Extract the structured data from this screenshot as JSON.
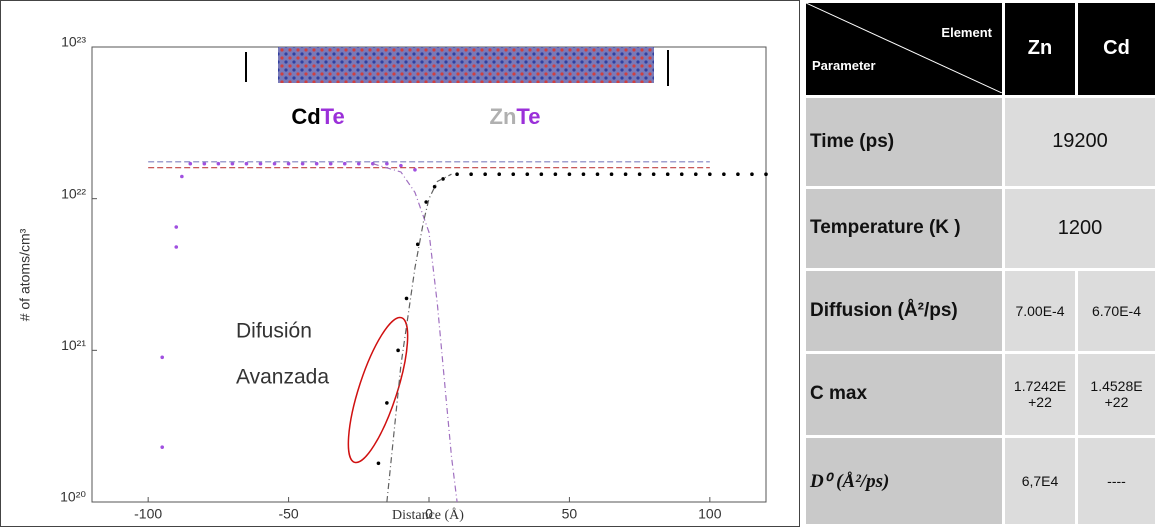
{
  "chart_data": {
    "type": "scatter",
    "y_scale": "log",
    "xlabel": "Distance (Å)",
    "ylabel": "# of atoms/cm³",
    "xlim": [
      -120,
      120
    ],
    "xticks": [
      -100,
      -50,
      0,
      50,
      100
    ],
    "ylim": [
      1e+20,
      1e+23
    ],
    "yticks": [
      {
        "value": 1e+20,
        "label": "10²⁰"
      },
      {
        "value": 1e+21,
        "label": "10²¹"
      },
      {
        "value": 1e+22,
        "label": "10²²"
      },
      {
        "value": 1e+23,
        "label": "10²³"
      }
    ],
    "material_labels": [
      {
        "parts": [
          "Cd",
          "Te"
        ],
        "colors": [
          "#000000",
          "#9b30d9"
        ]
      },
      {
        "parts": [
          "Zn",
          "Te"
        ],
        "colors": [
          "#b0b0b0",
          "#9b30d9"
        ]
      }
    ],
    "annotation": [
      "Difusión",
      "Avanzada"
    ],
    "series": [
      {
        "style": "dots",
        "color": "#000000",
        "x": [
          -18,
          -15,
          -11,
          -8,
          -4,
          -1,
          2,
          5,
          10,
          15,
          20,
          25,
          30,
          35,
          40,
          45,
          50,
          55,
          60,
          65,
          70,
          75,
          80,
          85,
          90,
          95,
          100,
          105,
          110,
          115,
          120
        ],
        "values": [
          1.8e+20,
          4.5e+20,
          1e+21,
          2.2e+21,
          5e+21,
          9.5e+21,
          1.2e+22,
          1.35e+22,
          1.45e+22,
          1.45e+22,
          1.45e+22,
          1.45e+22,
          1.45e+22,
          1.45e+22,
          1.45e+22,
          1.45e+22,
          1.45e+22,
          1.45e+22,
          1.45e+22,
          1.45e+22,
          1.45e+22,
          1.45e+22,
          1.45e+22,
          1.45e+22,
          1.45e+22,
          1.45e+22,
          1.45e+22,
          1.45e+22,
          1.45e+22,
          1.45e+22,
          1.45e+22
        ]
      },
      {
        "style": "dots",
        "color": "#a050e0",
        "x": [
          -95,
          -95,
          -90,
          -90,
          -88,
          -85,
          -80,
          -75,
          -70,
          -65,
          -60,
          -55,
          -50,
          -45,
          -40,
          -35,
          -30,
          -25,
          -20,
          -15,
          -10,
          -5
        ],
        "values": [
          2.3e+20,
          9e+20,
          6.5e+21,
          4.8e+21,
          1.4e+22,
          1.7e+22,
          1.7e+22,
          1.7e+22,
          1.7e+22,
          1.7e+22,
          1.7e+22,
          1.7e+22,
          1.7e+22,
          1.7e+22,
          1.7e+22,
          1.7e+22,
          1.7e+22,
          1.7e+22,
          1.7e+22,
          1.7e+22,
          1.65e+22,
          1.55e+22
        ]
      },
      {
        "style": "dashed",
        "color": "#8080c0",
        "x": [
          -100,
          100
        ],
        "values": [
          1.75e+22,
          1.75e+22
        ]
      },
      {
        "style": "dashed",
        "color": "#c04040",
        "x": [
          -100,
          100
        ],
        "values": [
          1.6e+22,
          1.6e+22
        ]
      },
      {
        "style": "dashdot",
        "color": "#a070c0",
        "x": [
          -20,
          -10,
          -5,
          0,
          3,
          6,
          8,
          10
        ],
        "values": [
          1.7e+22,
          1.5e+22,
          1.1e+22,
          6e+21,
          2e+21,
          5e+20,
          2e+20,
          1e+20
        ]
      },
      {
        "style": "dashdot",
        "color": "#606060",
        "x": [
          -15,
          -10,
          -5,
          -2,
          0,
          3,
          8
        ],
        "values": [
          1e+20,
          8e+20,
          3.5e+21,
          7e+21,
          1e+22,
          1.3e+22,
          1.45e+22
        ]
      }
    ]
  },
  "table": {
    "header": {
      "element": "Element",
      "parameter": "Parameter",
      "columns": [
        "Zn",
        "Cd"
      ]
    },
    "rows": [
      [
        "Time (ps)",
        "19200"
      ],
      [
        "Temperature (K )",
        "1200"
      ],
      [
        "Diffusion (Å²/ps)",
        "7.00E-4",
        "6.70E-4"
      ],
      [
        "C max",
        "1.7242E +22",
        "1.4528E +22"
      ],
      [
        "D⁰ (Å²/ps)",
        "6,7E4",
        "----"
      ]
    ]
  }
}
